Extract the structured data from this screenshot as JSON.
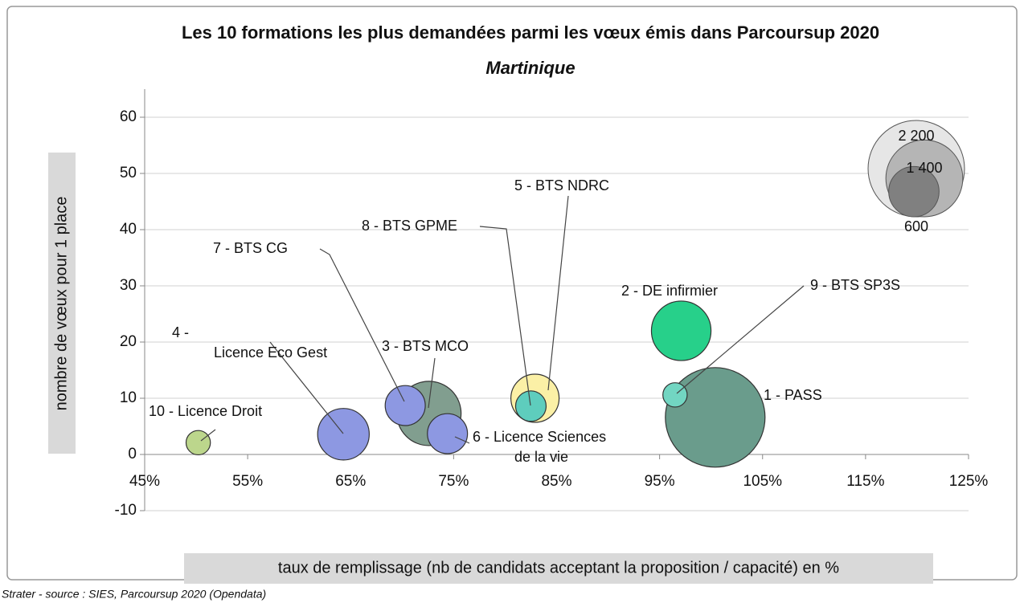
{
  "chart_data": {
    "type": "bubble",
    "title": "Les 10 formations les plus demandées parmi les vœux émis dans Parcoursup 2020",
    "subtitle": "Martinique",
    "xlabel": "taux de remplissage (nb de candidats acceptant la proposition / capacité) en %",
    "ylabel": "nombre de vœux pour 1 place",
    "source": "Strater - source : SIES, Parcoursup 2020 (Opendata)",
    "xlim": [
      45,
      125
    ],
    "xticks": [
      {
        "value": 45,
        "label": "45%"
      },
      {
        "value": 55,
        "label": "55%"
      },
      {
        "value": 65,
        "label": "65%"
      },
      {
        "value": 75,
        "label": "75%"
      },
      {
        "value": 85,
        "label": "85%"
      },
      {
        "value": 95,
        "label": "95%"
      },
      {
        "value": 105,
        "label": "105%"
      },
      {
        "value": 115,
        "label": "115%"
      },
      {
        "value": 125,
        "label": "125%"
      }
    ],
    "ylim": [
      -10,
      65
    ],
    "yticks": [
      -10,
      0,
      10,
      20,
      30,
      40,
      50,
      60
    ],
    "grid": true,
    "points": [
      {
        "name": "1 - PASS",
        "x": 100.4,
        "y": 6.6,
        "size": 2350,
        "color": "#6a9c8c"
      },
      {
        "name": "2 - DE infirmier",
        "x": 97.1,
        "y": 22,
        "size": 840,
        "color": "#27d08a"
      },
      {
        "name": "3 - BTS MCO",
        "x": 72.6,
        "y": 7.3,
        "size": 980,
        "color": "#819e8f"
      },
      {
        "name": "4 - Licence Eco Gest",
        "x": 64.3,
        "y": 3.6,
        "size": 630,
        "color": "#8d98e2"
      },
      {
        "name": "5 - BTS NDRC",
        "x": 82.9,
        "y": 10,
        "size": 550,
        "color": "#fbf0a6"
      },
      {
        "name": "6 - Licence Sciences de la vie",
        "x": 74.4,
        "y": 3.7,
        "size": 380,
        "color": "#8d98e2"
      },
      {
        "name": "7 - BTS CG",
        "x": 70.3,
        "y": 8.7,
        "size": 380,
        "color": "#8d98e2"
      },
      {
        "name": "8 - BTS GPME",
        "x": 82.5,
        "y": 8.6,
        "size": 220,
        "color": "#5ecdbd"
      },
      {
        "name": "9 - BTS SP3S",
        "x": 96.5,
        "y": 10.6,
        "size": 140,
        "color": "#72d6c2"
      },
      {
        "name": "10 - Licence Droit",
        "x": 50.2,
        "y": 2.1,
        "size": 140,
        "color": "#bcd68c"
      }
    ],
    "size_legend": [
      {
        "value": 2200,
        "label": "2 200"
      },
      {
        "value": 1400,
        "label": "1 400"
      },
      600
    ]
  }
}
